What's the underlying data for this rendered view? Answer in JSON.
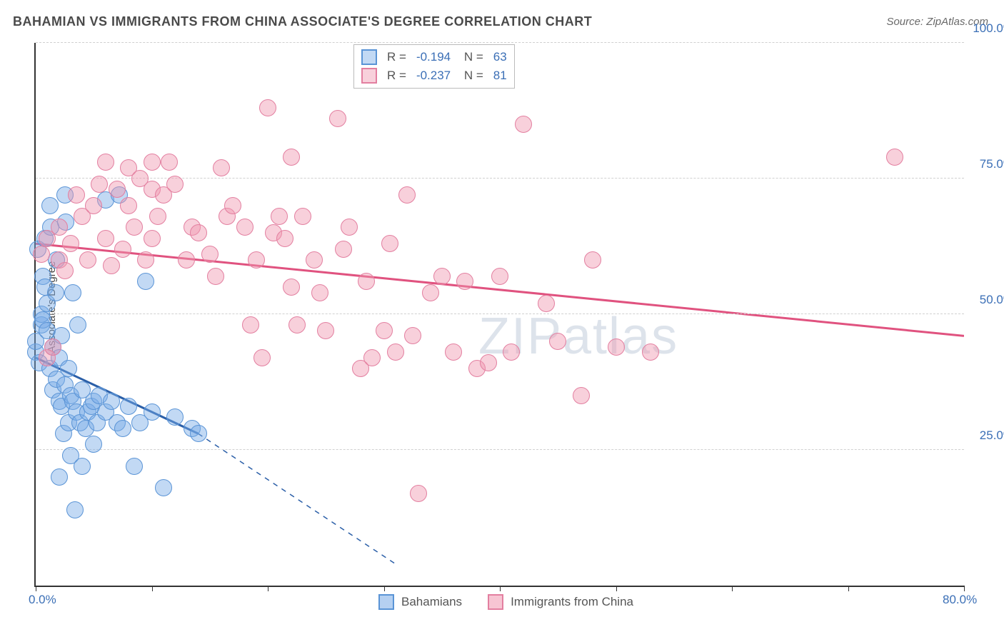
{
  "title": "BAHAMIAN VS IMMIGRANTS FROM CHINA ASSOCIATE'S DEGREE CORRELATION CHART",
  "source": "Source: ZipAtlas.com",
  "y_axis_label": "Associate's Degree",
  "watermark": "ZIPatlas",
  "chart": {
    "type": "scatter",
    "xlim": [
      0,
      80
    ],
    "ylim": [
      0,
      100
    ],
    "x_ticks": [
      0,
      10,
      20,
      30,
      40,
      50,
      60,
      70,
      80
    ],
    "x_tick_labels": {
      "0": "0.0%",
      "80": "80.0%"
    },
    "y_gridlines": [
      25,
      50,
      75,
      100
    ],
    "y_tick_labels": {
      "25": "25.0%",
      "50": "50.0%",
      "75": "75.0%",
      "100": "100.0%"
    },
    "grid_color": "#d0d0d0",
    "axis_color": "#333333",
    "background_color": "#ffffff",
    "marker_radius": 11,
    "series": [
      {
        "name": "Bahamians",
        "fill": "rgba(120,170,230,0.45)",
        "stroke": "#5a94d6",
        "line_color": "#2b5fa8",
        "line_width": 3,
        "R": "-0.194",
        "N": "63",
        "regression": {
          "x1": 0,
          "y1": 42,
          "x2_solid": 14,
          "y2_solid": 28,
          "x2_dash": 31,
          "y2_dash": 4
        },
        "points": [
          [
            0,
            43
          ],
          [
            0,
            45
          ],
          [
            0.2,
            62
          ],
          [
            0.3,
            41
          ],
          [
            0.5,
            48
          ],
          [
            0.5,
            50
          ],
          [
            0.6,
            49
          ],
          [
            0.6,
            57
          ],
          [
            0.8,
            55
          ],
          [
            0.8,
            64
          ],
          [
            1,
            47
          ],
          [
            1,
            52
          ],
          [
            1.2,
            40
          ],
          [
            1.2,
            70
          ],
          [
            1.3,
            66
          ],
          [
            1.5,
            36
          ],
          [
            1.5,
            44
          ],
          [
            1.7,
            54
          ],
          [
            1.8,
            38
          ],
          [
            1.8,
            60
          ],
          [
            2,
            20
          ],
          [
            2,
            34
          ],
          [
            2,
            42
          ],
          [
            2.2,
            33
          ],
          [
            2.2,
            46
          ],
          [
            2.4,
            28
          ],
          [
            2.5,
            72
          ],
          [
            2.5,
            37
          ],
          [
            2.8,
            30
          ],
          [
            2.8,
            40
          ],
          [
            3,
            24
          ],
          [
            3,
            35
          ],
          [
            3.2,
            34
          ],
          [
            3.4,
            14
          ],
          [
            3.5,
            32
          ],
          [
            3.6,
            48
          ],
          [
            3.8,
            30
          ],
          [
            4,
            22
          ],
          [
            4,
            36
          ],
          [
            4.3,
            29
          ],
          [
            4.5,
            32
          ],
          [
            4.8,
            33
          ],
          [
            5,
            34
          ],
          [
            5,
            26
          ],
          [
            5.3,
            30
          ],
          [
            5.5,
            35
          ],
          [
            6,
            71
          ],
          [
            6,
            32
          ],
          [
            6.5,
            34
          ],
          [
            7,
            30
          ],
          [
            7.2,
            72
          ],
          [
            7.5,
            29
          ],
          [
            8,
            33
          ],
          [
            8.5,
            22
          ],
          [
            9,
            30
          ],
          [
            9.5,
            56
          ],
          [
            10,
            32
          ],
          [
            11,
            18
          ],
          [
            12,
            31
          ],
          [
            13.5,
            29
          ],
          [
            14,
            28
          ],
          [
            2.6,
            67
          ],
          [
            3.2,
            54
          ]
        ]
      },
      {
        "name": "Immigrants from China",
        "fill": "rgba(240,150,175,0.45)",
        "stroke": "#e37fa0",
        "line_color": "#e0527f",
        "line_width": 3,
        "R": "-0.237",
        "N": "81",
        "regression": {
          "x1": 0,
          "y1": 63,
          "x2_solid": 80,
          "y2_solid": 46
        },
        "points": [
          [
            0.5,
            61
          ],
          [
            1,
            64
          ],
          [
            1,
            42
          ],
          [
            1.5,
            44
          ],
          [
            2,
            60
          ],
          [
            2,
            66
          ],
          [
            2.5,
            58
          ],
          [
            3,
            63
          ],
          [
            3.5,
            72
          ],
          [
            4,
            68
          ],
          [
            4.5,
            60
          ],
          [
            5,
            70
          ],
          [
            5.5,
            74
          ],
          [
            6,
            64
          ],
          [
            6,
            78
          ],
          [
            6.5,
            59
          ],
          [
            7,
            73
          ],
          [
            7.5,
            62
          ],
          [
            8,
            70
          ],
          [
            8,
            77
          ],
          [
            8.5,
            66
          ],
          [
            9,
            75
          ],
          [
            9.5,
            60
          ],
          [
            10,
            73
          ],
          [
            10,
            78
          ],
          [
            10,
            64
          ],
          [
            10.5,
            68
          ],
          [
            11,
            72
          ],
          [
            11.5,
            78
          ],
          [
            12,
            74
          ],
          [
            13,
            60
          ],
          [
            13.5,
            66
          ],
          [
            14,
            65
          ],
          [
            15,
            61
          ],
          [
            15.5,
            57
          ],
          [
            16,
            77
          ],
          [
            16.5,
            68
          ],
          [
            17,
            70
          ],
          [
            18,
            66
          ],
          [
            18.5,
            48
          ],
          [
            19,
            60
          ],
          [
            19.5,
            42
          ],
          [
            20,
            88
          ],
          [
            20.5,
            65
          ],
          [
            21,
            68
          ],
          [
            21.5,
            64
          ],
          [
            22,
            79
          ],
          [
            22.5,
            48
          ],
          [
            23,
            68
          ],
          [
            24,
            60
          ],
          [
            24.5,
            54
          ],
          [
            25,
            47
          ],
          [
            26,
            86
          ],
          [
            26.5,
            62
          ],
          [
            27,
            66
          ],
          [
            28,
            40
          ],
          [
            28.5,
            56
          ],
          [
            29,
            42
          ],
          [
            30,
            47
          ],
          [
            30.5,
            63
          ],
          [
            31,
            43
          ],
          [
            32,
            72
          ],
          [
            32.5,
            46
          ],
          [
            33,
            17
          ],
          [
            34,
            54
          ],
          [
            35,
            57
          ],
          [
            36,
            43
          ],
          [
            37,
            56
          ],
          [
            38,
            40
          ],
          [
            39,
            41
          ],
          [
            40,
            57
          ],
          [
            41,
            43
          ],
          [
            42,
            85
          ],
          [
            44,
            52
          ],
          [
            45,
            45
          ],
          [
            47,
            35
          ],
          [
            48,
            60
          ],
          [
            50,
            44
          ],
          [
            53,
            43
          ],
          [
            74,
            79
          ],
          [
            22,
            55
          ]
        ]
      }
    ]
  },
  "legend_bottom": [
    {
      "label": "Bahamians",
      "fill": "rgba(120,170,230,0.55)",
      "stroke": "#5a94d6"
    },
    {
      "label": "Immigrants from China",
      "fill": "rgba(240,150,175,0.55)",
      "stroke": "#e37fa0"
    }
  ]
}
